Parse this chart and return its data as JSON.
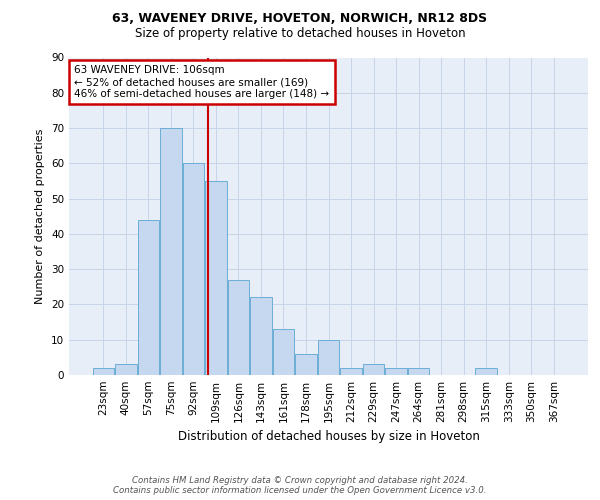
{
  "title1": "63, WAVENEY DRIVE, HOVETON, NORWICH, NR12 8DS",
  "title2": "Size of property relative to detached houses in Hoveton",
  "xlabel": "Distribution of detached houses by size in Hoveton",
  "ylabel": "Number of detached properties",
  "categories": [
    "23sqm",
    "40sqm",
    "57sqm",
    "75sqm",
    "92sqm",
    "109sqm",
    "126sqm",
    "143sqm",
    "161sqm",
    "178sqm",
    "195sqm",
    "212sqm",
    "229sqm",
    "247sqm",
    "264sqm",
    "281sqm",
    "298sqm",
    "315sqm",
    "333sqm",
    "350sqm",
    "367sqm"
  ],
  "bar_heights": [
    2,
    3,
    44,
    70,
    60,
    55,
    27,
    22,
    13,
    6,
    10,
    2,
    3,
    2,
    2,
    0,
    0,
    2,
    0,
    0,
    0
  ],
  "bar_color": "#c5d8f0",
  "bar_edge_color": "#6baed6",
  "grid_color": "#c8d4e8",
  "background_color": "#e8eef8",
  "annotation_box_color": "#cc0000",
  "vline_color": "#cc0000",
  "vline_x": 4.65,
  "annotation_text": "63 WAVENEY DRIVE: 106sqm\n← 52% of detached houses are smaller (169)\n46% of semi-detached houses are larger (148) →",
  "footer": "Contains HM Land Registry data © Crown copyright and database right 2024.\nContains public sector information licensed under the Open Government Licence v3.0.",
  "ylim": [
    0,
    90
  ],
  "yticks": [
    0,
    10,
    20,
    30,
    40,
    50,
    60,
    70,
    80,
    90
  ]
}
